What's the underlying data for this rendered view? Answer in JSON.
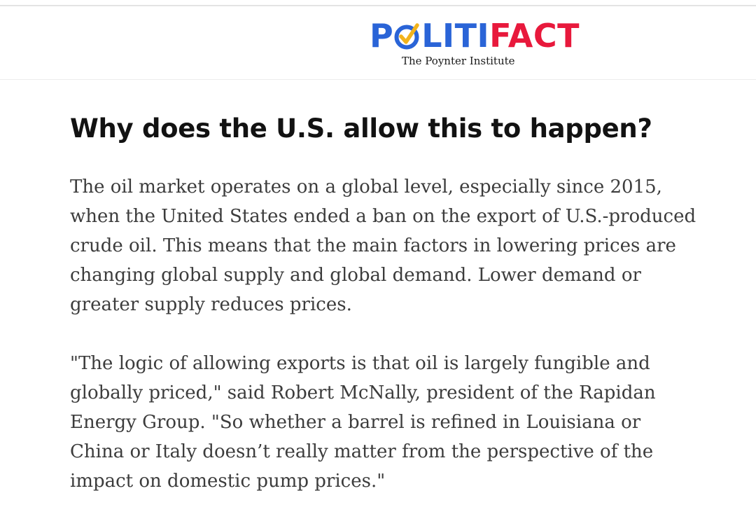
{
  "header": {
    "logo": {
      "part1": "P",
      "part2": "LITI",
      "part3": "FACT",
      "subtitle": "The Poynter Institute",
      "colors": {
        "blue": "#2a64d7",
        "red": "#e8193c",
        "check_yellow": "#f2b31c"
      }
    }
  },
  "article": {
    "headline": "Why does the U.S. allow this to happen?",
    "paragraphs": [
      "The oil market operates on a global level, especially since 2015, when the United States ended a ban on the export of U.S.-produced crude oil. This means that the main factors in lowering prices are changing global supply and global demand. Lower demand or greater supply reduces prices.",
      "\"The logic of allowing exports is that oil is largely fungible and globally priced,\" said Robert McNally, president of the Rapidan Energy Group. \"So whether a barrel is refined in Louisiana or China or Italy doesn’t really matter from the perspective of the impact on domestic pump prices.\""
    ]
  }
}
